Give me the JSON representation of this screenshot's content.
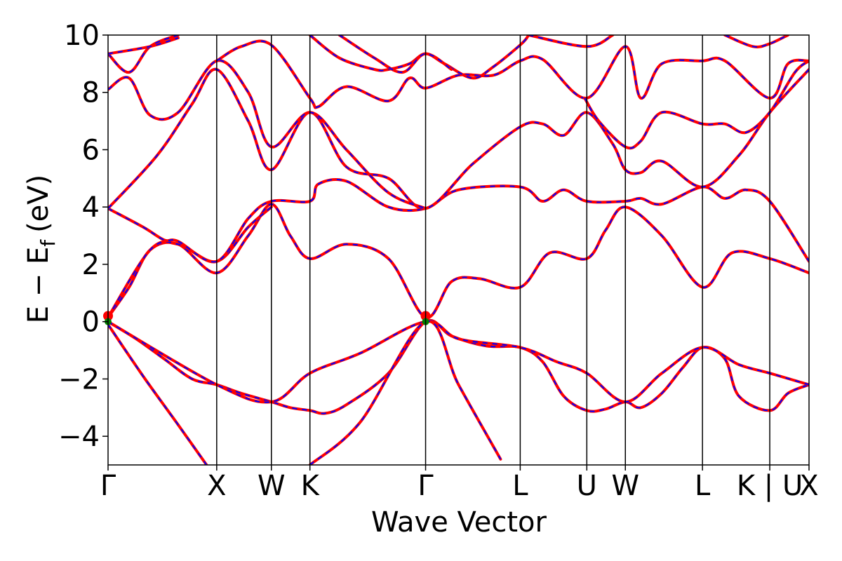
{
  "chart_data": {
    "type": "line",
    "xlabel": "Wave Vector",
    "ylabel_main": "E − E",
    "ylabel_sub": "f",
    "ylabel_unit": "(eV)",
    "xlim": [
      0,
      1
    ],
    "ylim": [
      -5,
      10
    ],
    "yticks": [
      -4,
      -2,
      0,
      2,
      4,
      6,
      8,
      10
    ],
    "ytick_labels": [
      "−4",
      "−2",
      "0",
      "2",
      "4",
      "6",
      "8",
      "10"
    ],
    "kpoints": [
      {
        "label": "Γ",
        "x": 0.0
      },
      {
        "label": "X",
        "x": 0.155
      },
      {
        "label": "W",
        "x": 0.233
      },
      {
        "label": "K",
        "x": 0.288
      },
      {
        "label": "Γ",
        "x": 0.453
      },
      {
        "label": "L",
        "x": 0.588
      },
      {
        "label": "U",
        "x": 0.683
      },
      {
        "label": "W",
        "x": 0.738
      },
      {
        "label": "L",
        "x": 0.848
      },
      {
        "label": "K | U",
        "x": 0.944
      },
      {
        "label": "X",
        "x": 1.0
      }
    ],
    "colors": {
      "band_solid": "#ff0000",
      "band_dash": "#0000ff",
      "marker_red": "#ff0000",
      "marker_green": "#008000",
      "vline": "#000000"
    },
    "bands": [
      [
        [
          0.0,
          -0.1
        ],
        [
          0.05,
          -1.9
        ],
        [
          0.1,
          -3.6
        ],
        [
          0.155,
          -5.5
        ]
      ],
      [
        [
          0.0,
          0.0
        ],
        [
          0.04,
          -0.6
        ],
        [
          0.08,
          -1.3
        ],
        [
          0.12,
          -2.0
        ],
        [
          0.155,
          -2.2
        ],
        [
          0.19,
          -2.5
        ],
        [
          0.233,
          -2.8
        ],
        [
          0.26,
          -3.0
        ],
        [
          0.288,
          -3.1
        ],
        [
          0.31,
          -3.2
        ],
        [
          0.34,
          -2.9
        ],
        [
          0.4,
          -1.8
        ],
        [
          0.453,
          0.0
        ],
        [
          0.49,
          -0.5
        ],
        [
          0.54,
          -0.85
        ],
        [
          0.588,
          -0.9
        ],
        [
          0.62,
          -1.4
        ],
        [
          0.65,
          -2.6
        ],
        [
          0.683,
          -3.1
        ],
        [
          0.71,
          -3.05
        ],
        [
          0.738,
          -2.8
        ],
        [
          0.76,
          -3.0
        ],
        [
          0.79,
          -2.5
        ],
        [
          0.82,
          -1.6
        ],
        [
          0.848,
          -0.9
        ],
        [
          0.88,
          -1.3
        ],
        [
          0.9,
          -2.6
        ],
        [
          0.944,
          -3.1
        ],
        [
          0.97,
          -2.5
        ],
        [
          1.0,
          -2.2
        ]
      ],
      [
        [
          0.0,
          0.0
        ],
        [
          0.155,
          -2.2
        ],
        [
          0.233,
          -2.8
        ],
        [
          0.288,
          -1.8
        ],
        [
          0.36,
          -1.1
        ],
        [
          0.453,
          0.0
        ],
        [
          0.5,
          -0.6
        ],
        [
          0.588,
          -0.9
        ],
        [
          0.64,
          -1.4
        ],
        [
          0.683,
          -1.8
        ],
        [
          0.738,
          -2.8
        ],
        [
          0.79,
          -1.8
        ],
        [
          0.848,
          -0.9
        ],
        [
          0.9,
          -1.5
        ],
        [
          0.944,
          -1.8
        ],
        [
          1.0,
          -2.2
        ]
      ],
      [
        [
          0.288,
          -5.0
        ],
        [
          0.36,
          -3.5
        ],
        [
          0.453,
          0.0
        ],
        [
          0.5,
          -2.2
        ],
        [
          0.56,
          -4.8
        ]
      ],
      [
        [
          0.0,
          0.15
        ],
        [
          0.03,
          1.2
        ],
        [
          0.06,
          2.5
        ],
        [
          0.1,
          2.7
        ],
        [
          0.155,
          1.7
        ],
        [
          0.2,
          3.0
        ],
        [
          0.233,
          4.1
        ],
        [
          0.26,
          3.0
        ],
        [
          0.288,
          2.2
        ],
        [
          0.34,
          2.7
        ],
        [
          0.4,
          2.2
        ],
        [
          0.453,
          0.15
        ],
        [
          0.49,
          1.4
        ],
        [
          0.53,
          1.5
        ],
        [
          0.588,
          1.2
        ],
        [
          0.63,
          2.4
        ],
        [
          0.683,
          2.2
        ],
        [
          0.71,
          3.2
        ],
        [
          0.738,
          4.0
        ],
        [
          0.79,
          3.0
        ],
        [
          0.848,
          1.2
        ],
        [
          0.89,
          2.4
        ],
        [
          0.944,
          2.2
        ],
        [
          1.0,
          1.7
        ]
      ],
      [
        [
          0.0,
          0.15
        ],
        [
          0.06,
          2.5
        ],
        [
          0.1,
          2.7
        ],
        [
          0.155,
          2.1
        ],
        [
          0.2,
          3.3
        ],
        [
          0.233,
          4.0
        ]
      ],
      [
        [
          0.0,
          3.95
        ],
        [
          0.05,
          3.3
        ],
        [
          0.08,
          2.85
        ],
        [
          0.1,
          2.8
        ],
        [
          0.155,
          2.1
        ],
        [
          0.2,
          3.6
        ],
        [
          0.233,
          4.2
        ],
        [
          0.288,
          4.2
        ],
        [
          0.3,
          4.8
        ],
        [
          0.34,
          4.9
        ],
        [
          0.4,
          4.0
        ],
        [
          0.453,
          3.95
        ],
        [
          0.5,
          4.6
        ],
        [
          0.588,
          4.7
        ],
        [
          0.62,
          4.2
        ],
        [
          0.65,
          4.6
        ],
        [
          0.683,
          4.2
        ],
        [
          0.738,
          4.2
        ],
        [
          0.76,
          4.3
        ],
        [
          0.79,
          4.1
        ],
        [
          0.848,
          4.7
        ],
        [
          0.88,
          4.3
        ],
        [
          0.91,
          4.6
        ],
        [
          0.944,
          4.2
        ],
        [
          1.0,
          2.1
        ]
      ],
      [
        [
          0.0,
          3.95
        ],
        [
          0.07,
          5.8
        ],
        [
          0.12,
          7.6
        ],
        [
          0.155,
          8.8
        ],
        [
          0.2,
          7.0
        ],
        [
          0.233,
          5.3
        ],
        [
          0.288,
          7.3
        ],
        [
          0.34,
          5.4
        ],
        [
          0.4,
          5.0
        ],
        [
          0.453,
          3.95
        ],
        [
          0.52,
          5.5
        ],
        [
          0.588,
          6.8
        ],
        [
          0.62,
          6.9
        ],
        [
          0.65,
          6.5
        ],
        [
          0.683,
          7.3
        ],
        [
          0.72,
          6.2
        ],
        [
          0.738,
          5.3
        ],
        [
          0.76,
          5.2
        ],
        [
          0.79,
          5.6
        ],
        [
          0.848,
          4.7
        ],
        [
          0.9,
          5.8
        ],
        [
          0.944,
          7.3
        ],
        [
          1.0,
          8.8
        ]
      ],
      [
        [
          0.0,
          8.1
        ],
        [
          0.03,
          8.5
        ],
        [
          0.06,
          7.2
        ],
        [
          0.1,
          7.3
        ],
        [
          0.155,
          9.1
        ],
        [
          0.2,
          8.0
        ],
        [
          0.233,
          6.1
        ],
        [
          0.288,
          7.3
        ],
        [
          0.34,
          6.0
        ],
        [
          0.4,
          4.5
        ],
        [
          0.453,
          3.95
        ]
      ],
      [
        [
          0.0,
          9.35
        ],
        [
          0.03,
          8.7
        ],
        [
          0.06,
          9.6
        ],
        [
          0.1,
          10.0
        ]
      ],
      [
        [
          0.0,
          9.35
        ],
        [
          0.06,
          9.6
        ],
        [
          0.1,
          9.9
        ]
      ],
      [
        [
          0.155,
          9.1
        ],
        [
          0.19,
          9.6
        ],
        [
          0.233,
          9.65
        ],
        [
          0.288,
          7.8
        ],
        [
          0.3,
          7.5
        ],
        [
          0.34,
          8.2
        ],
        [
          0.4,
          7.7
        ],
        [
          0.43,
          8.5
        ],
        [
          0.453,
          8.15
        ],
        [
          0.5,
          8.6
        ],
        [
          0.55,
          8.6
        ],
        [
          0.588,
          9.1
        ],
        [
          0.62,
          9.15
        ],
        [
          0.683,
          7.8
        ],
        [
          0.738,
          9.6
        ],
        [
          0.76,
          7.8
        ],
        [
          0.79,
          9.0
        ],
        [
          0.848,
          9.1
        ],
        [
          0.88,
          9.1
        ],
        [
          0.944,
          7.8
        ],
        [
          0.97,
          9.0
        ],
        [
          1.0,
          9.1
        ]
      ],
      [
        [
          0.288,
          10.0
        ],
        [
          0.33,
          9.2
        ],
        [
          0.38,
          8.8
        ],
        [
          0.4,
          8.8
        ],
        [
          0.43,
          9.0
        ],
        [
          0.453,
          9.35
        ],
        [
          0.48,
          9.0
        ],
        [
          0.52,
          8.5
        ],
        [
          0.55,
          8.9
        ],
        [
          0.59,
          9.7
        ],
        [
          0.6,
          10.0
        ]
      ],
      [
        [
          0.33,
          10.0
        ],
        [
          0.38,
          9.2
        ],
        [
          0.42,
          8.7
        ],
        [
          0.453,
          9.35
        ],
        [
          0.49,
          8.8
        ]
      ],
      [
        [
          0.68,
          7.8
        ],
        [
          0.7,
          7.0
        ],
        [
          0.738,
          6.1
        ],
        [
          0.76,
          6.3
        ],
        [
          0.79,
          7.3
        ],
        [
          0.848,
          6.9
        ],
        [
          0.88,
          6.9
        ],
        [
          0.91,
          6.6
        ],
        [
          0.944,
          7.3
        ],
        [
          0.98,
          8.7
        ],
        [
          1.0,
          9.1
        ]
      ],
      [
        [
          0.6,
          10.0
        ],
        [
          0.683,
          9.6
        ],
        [
          0.72,
          10.0
        ]
      ],
      [
        [
          0.88,
          10.0
        ],
        [
          0.92,
          9.6
        ],
        [
          0.944,
          9.7
        ],
        [
          0.97,
          10.0
        ]
      ]
    ]
  }
}
